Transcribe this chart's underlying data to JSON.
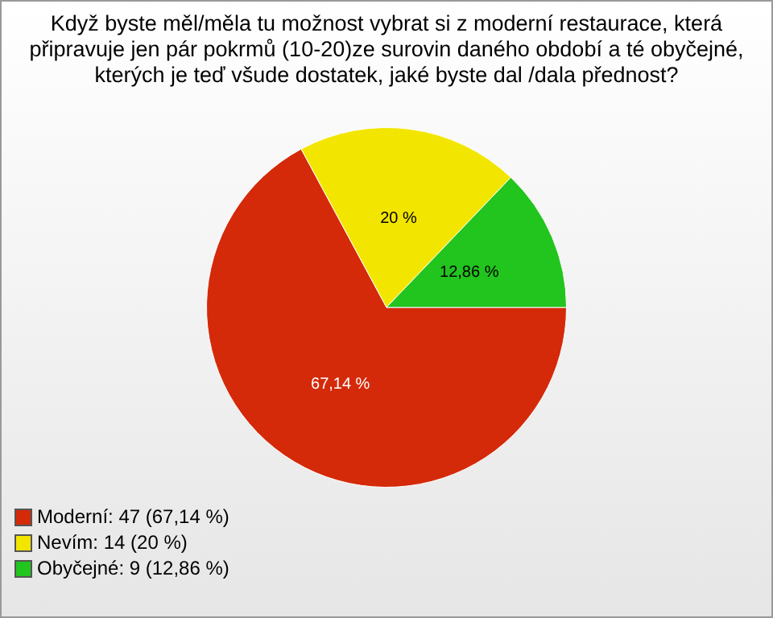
{
  "chart_data": {
    "type": "pie",
    "title": "Když byste měl/měla tu možnost vybrat si z moderní restaurace, která připravuje jen pár pokrmů (10-20)ze surovin daného období a té obyčejné, kterých je teď všude dostatek, jaké byste dal /dala přednost?",
    "categories": [
      "Moderní: 47 (67,14 %)",
      "Nevím: 14 (20 %)",
      "Obyčejné: 9 (12,86 %)"
    ],
    "values": [
      67.14,
      20,
      12.86
    ],
    "colors": [
      "#d42a0a",
      "#f2e600",
      "#22c41e"
    ],
    "value_labels": [
      "67,14 %",
      "20 %",
      "12,86 %"
    ],
    "legend": "bottom left"
  }
}
